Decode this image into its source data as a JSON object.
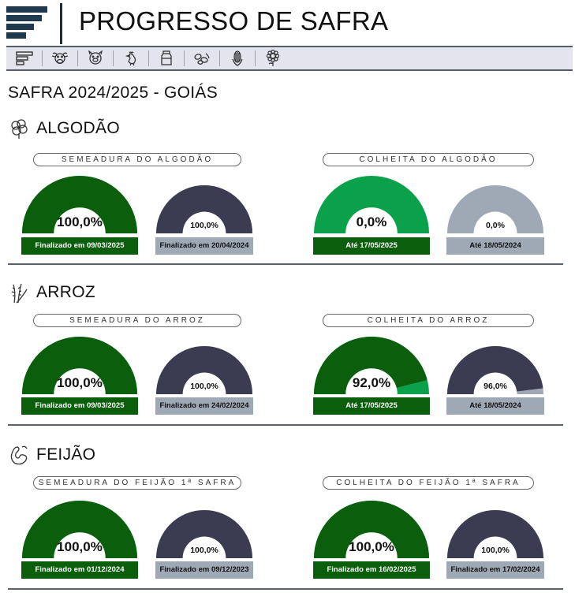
{
  "app": {
    "title": "PROGRESSO DE SAFRA"
  },
  "toolbar": {
    "buttons": [
      {
        "icon": "bars-icon"
      },
      {
        "icon": "cow-icon"
      },
      {
        "icon": "pig-icon"
      },
      {
        "icon": "chicken-icon"
      },
      {
        "icon": "milk-can-icon"
      },
      {
        "icon": "beans-icon"
      },
      {
        "icon": "corn-icon"
      },
      {
        "icon": "sunflower-icon"
      }
    ]
  },
  "section": {
    "title": "SAFRA 2024/2025 - GOIÁS"
  },
  "colors": {
    "current_main": "#0b5e0b",
    "current_light": "#0ba14a",
    "previous_main": "#3b3b52",
    "previous_light": "#9fa9b5",
    "empty": "#d9d9d9"
  },
  "crops": [
    {
      "name": "ALGODÃO",
      "icon": "cotton-icon",
      "sowing": {
        "title": "SEMEADURA DO ALGODÃO",
        "current": {
          "value_text": "100,0%",
          "value": 100,
          "label": "Finalizado em 09/03/2025"
        },
        "previous": {
          "value_text": "100,0%",
          "value": 100,
          "label": "Finalizado em 20/04/2024"
        }
      },
      "harvest": {
        "title": "COLHEITA DO ALGODÃO",
        "current": {
          "value_text": "0,0%",
          "value": 0,
          "label": "Até 17/05/2025"
        },
        "previous": {
          "value_text": "0,0%",
          "value": 0,
          "label": "Até 18/05/2024"
        }
      }
    },
    {
      "name": "ARROZ",
      "icon": "rice-icon",
      "sowing": {
        "title": "SEMEADURA DO ARROZ",
        "current": {
          "value_text": "100,0%",
          "value": 100,
          "label": "Finalizado em 09/03/2025"
        },
        "previous": {
          "value_text": "100,0%",
          "value": 100,
          "label": "Finalizado em 24/02/2024"
        }
      },
      "harvest": {
        "title": "COLHEITA DO ARROZ",
        "current": {
          "value_text": "92,0%",
          "value": 92,
          "label": "Até 17/05/2025"
        },
        "previous": {
          "value_text": "96,0%",
          "value": 96,
          "label": "Até 18/05/2024"
        }
      }
    },
    {
      "name": "FEIJÃO",
      "icon": "bean-icon",
      "sowing": {
        "title": "SEMEADURA DO FEIJÃO 1ª SAFRA",
        "current": {
          "value_text": "100,0%",
          "value": 100,
          "label": "Finalizado em 01/12/2024"
        },
        "previous": {
          "value_text": "100,0%",
          "value": 100,
          "label": "Finalizado em 09/12/2023"
        }
      },
      "harvest": {
        "title": "COLHEITA DO FEIJÃO 1ª SAFRA",
        "current": {
          "value_text": "100,0%",
          "value": 100,
          "label": "Finalizado em 16/02/2025"
        },
        "previous": {
          "value_text": "100,0%",
          "value": 100,
          "label": "Finalizado em 17/02/2024"
        }
      }
    }
  ]
}
